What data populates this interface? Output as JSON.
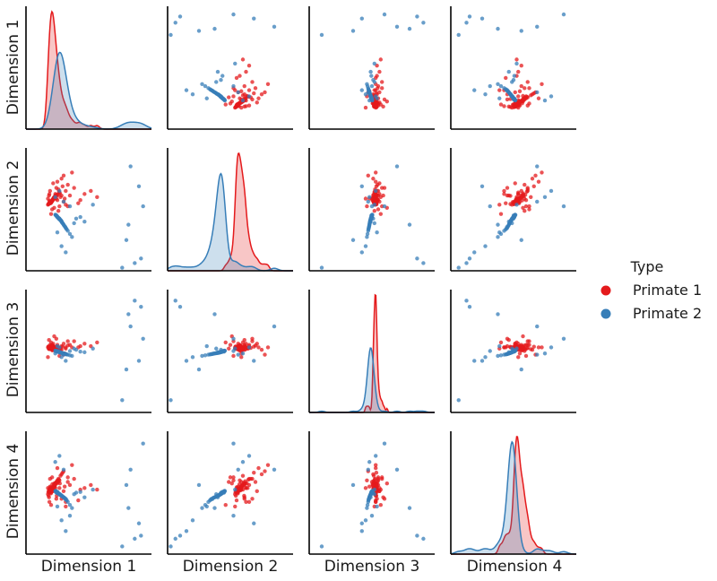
{
  "chart_data": {
    "type": "scatter",
    "subtype": "pairplot",
    "variables": [
      "Dimension 1",
      "Dimension 2",
      "Dimension 3",
      "Dimension 4"
    ],
    "diagonal": "kde",
    "tick_labels_shown": false,
    "legend": {
      "title": "Type",
      "placement": "right",
      "entries": [
        "Primate 1",
        "Primate 2"
      ]
    },
    "colors": {
      "Primate 1": "#e41a1c",
      "Primate 2": "#377eb8"
    },
    "ranges": {
      "Dimension 1": [
        -1.0,
        5.0
      ],
      "Dimension 2": [
        -4.0,
        4.0
      ],
      "Dimension 3": [
        -5.0,
        5.0
      ],
      "Dimension 4": [
        -4.0,
        4.0
      ]
    },
    "series": [
      {
        "name": "Primate 1",
        "points": [
          [
            0.1,
            0.4,
            0.2,
            0.1
          ],
          [
            0.25,
            0.6,
            0.1,
            0.3
          ],
          [
            0.05,
            0.3,
            0.3,
            -0.1
          ],
          [
            0.3,
            0.7,
            0.2,
            0.2
          ],
          [
            0.15,
            0.5,
            0.4,
            0.4
          ],
          [
            0.4,
            0.9,
            0.1,
            0.6
          ],
          [
            0.2,
            0.45,
            0.25,
            0.0
          ],
          [
            0.35,
            0.8,
            0.3,
            0.5
          ],
          [
            0.12,
            0.55,
            0.15,
            0.25
          ],
          [
            0.5,
            0.6,
            0.5,
            0.8
          ],
          [
            0.6,
            1.1,
            0.2,
            0.3
          ],
          [
            0.08,
            0.35,
            0.35,
            -0.2
          ],
          [
            0.45,
            0.7,
            0.0,
            0.7
          ],
          [
            0.28,
            0.65,
            0.45,
            0.15
          ],
          [
            0.18,
            0.4,
            0.2,
            0.35
          ],
          [
            0.7,
            0.9,
            0.4,
            -0.4
          ],
          [
            0.33,
            0.75,
            0.1,
            0.45
          ],
          [
            0.22,
            0.5,
            0.3,
            0.05
          ],
          [
            0.55,
            1.3,
            0.25,
            0.9
          ],
          [
            0.14,
            0.42,
            0.35,
            0.2
          ],
          [
            0.8,
            0.5,
            0.6,
            0.1
          ],
          [
            0.26,
            0.58,
            0.05,
            0.55
          ],
          [
            0.4,
            1.0,
            0.3,
            0.3
          ],
          [
            0.19,
            0.48,
            0.22,
            -0.05
          ],
          [
            0.65,
            0.8,
            0.15,
            1.1
          ],
          [
            0.31,
            0.68,
            0.4,
            0.28
          ],
          [
            0.09,
            0.36,
            0.18,
            0.12
          ],
          [
            0.9,
            1.2,
            0.3,
            -0.6
          ],
          [
            0.38,
            0.72,
            0.28,
            0.38
          ],
          [
            0.24,
            0.52,
            0.12,
            0.18
          ],
          [
            0.16,
            0.46,
            0.32,
            0.08
          ],
          [
            1.1,
            0.9,
            0.5,
            0.5
          ],
          [
            0.42,
            0.85,
            0.2,
            0.65
          ],
          [
            0.29,
            0.62,
            0.38,
            0.22
          ],
          [
            0.21,
            0.44,
            0.16,
            0.32
          ],
          [
            0.75,
            1.5,
            0.35,
            1.3
          ],
          [
            0.36,
            0.78,
            0.24,
            0.42
          ],
          [
            0.13,
            0.39,
            0.28,
            0.02
          ],
          [
            0.52,
            0.95,
            0.12,
            0.75
          ],
          [
            0.27,
            0.57,
            0.42,
            0.14
          ],
          [
            1.3,
            1.4,
            0.8,
            0.9
          ],
          [
            0.47,
            0.88,
            0.3,
            -0.2
          ],
          [
            0.23,
            0.51,
            0.19,
            0.27
          ],
          [
            0.62,
            1.05,
            0.26,
            0.6
          ],
          [
            0.17,
            0.43,
            0.33,
            0.11
          ],
          [
            0.34,
            0.74,
            0.08,
            0.48
          ],
          [
            1.6,
            0.6,
            0.4,
            0.2
          ],
          [
            0.44,
            0.92,
            0.36,
            0.58
          ],
          [
            0.11,
            0.37,
            0.23,
            0.06
          ],
          [
            0.58,
            1.15,
            0.21,
            0.85
          ],
          [
            0.32,
            0.66,
            0.31,
            0.34
          ],
          [
            0.2,
            0.47,
            0.14,
            0.16
          ],
          [
            0.85,
            0.7,
            -0.2,
            0.4
          ],
          [
            0.39,
            0.83,
            0.29,
            0.52
          ],
          [
            0.07,
            0.33,
            0.37,
            0.03
          ],
          [
            1.0,
            1.6,
            0.45,
            0.7
          ],
          [
            0.3,
            0.64,
            0.17,
            0.26
          ],
          [
            0.48,
            0.97,
            0.34,
            0.62
          ],
          [
            0.25,
            0.54,
            0.27,
            0.19
          ],
          [
            1.8,
            1.0,
            0.6,
            0.3
          ],
          [
            0.15,
            1.2,
            0.5,
            0.9
          ],
          [
            0.5,
            1.8,
            0.3,
            1.6
          ],
          [
            0.2,
            -0.3,
            0.7,
            -0.8
          ],
          [
            0.6,
            0.2,
            -0.4,
            0.8
          ],
          [
            0.1,
            0.9,
            0.9,
            -0.3
          ],
          [
            0.7,
            2.0,
            0.1,
            1.2
          ],
          [
            0.35,
            0.1,
            1.2,
            0.6
          ],
          [
            0.9,
            0.3,
            0.2,
            -0.9
          ],
          [
            0.05,
            0.7,
            -0.5,
            0.3
          ],
          [
            1.2,
            2.4,
            0.3,
            1.8
          ],
          [
            0.45,
            1.4,
            1.0,
            -0.4
          ],
          [
            0.25,
            0.0,
            0.5,
            1.0
          ],
          [
            2.1,
            1.2,
            0.4,
            0.5
          ],
          [
            2.4,
            0.8,
            0.7,
            0.2
          ],
          [
            0.8,
            2.2,
            -0.3,
            1.4
          ],
          [
            1.5,
            0.4,
            0.3,
            -0.5
          ],
          [
            0.3,
            1.7,
            0.6,
            0.1
          ],
          [
            0.55,
            -0.1,
            0.2,
            0.7
          ],
          [
            1.0,
            0.2,
            0.8,
            1.0
          ],
          [
            0.12,
            1.0,
            0.3,
            -0.6
          ]
        ]
      },
      {
        "name": "Primate 2",
        "points": [
          [
            0.6,
            -0.6,
            -0.1,
            -0.1
          ],
          [
            0.45,
            -0.4,
            -0.05,
            0.0
          ],
          [
            0.7,
            -0.8,
            -0.15,
            -0.2
          ],
          [
            0.5,
            -0.5,
            0.0,
            0.05
          ],
          [
            0.8,
            -1.0,
            -0.2,
            -0.3
          ],
          [
            0.55,
            -0.55,
            -0.08,
            -0.05
          ],
          [
            0.65,
            -0.7,
            -0.12,
            -0.15
          ],
          [
            0.4,
            -0.35,
            0.02,
            0.1
          ],
          [
            0.9,
            -1.2,
            -0.25,
            -0.4
          ],
          [
            0.58,
            -0.62,
            -0.06,
            -0.08
          ],
          [
            0.48,
            -0.45,
            -0.03,
            0.02
          ],
          [
            0.75,
            -0.9,
            -0.18,
            -0.25
          ],
          [
            0.62,
            -0.66,
            -0.1,
            -0.12
          ],
          [
            0.52,
            -0.52,
            -0.04,
            -0.02
          ],
          [
            1.0,
            -1.4,
            -0.3,
            -0.6
          ],
          [
            0.68,
            -0.75,
            -0.14,
            -0.18
          ],
          [
            0.43,
            -0.38,
            0.01,
            0.08
          ],
          [
            0.57,
            -0.58,
            -0.07,
            -0.06
          ],
          [
            0.85,
            -1.1,
            -0.22,
            -0.35
          ],
          [
            0.64,
            -0.68,
            -0.11,
            -0.13
          ],
          [
            0.5,
            -0.48,
            -0.02,
            0.03
          ],
          [
            0.72,
            -0.85,
            -0.16,
            -0.22
          ],
          [
            0.46,
            -0.42,
            -0.01,
            0.06
          ],
          [
            0.6,
            -0.64,
            -0.09,
            -0.1
          ],
          [
            0.95,
            -1.3,
            -0.28,
            -0.5
          ],
          [
            0.55,
            -0.56,
            -0.05,
            -0.04
          ],
          [
            0.66,
            -0.72,
            -0.13,
            -0.16
          ],
          [
            0.42,
            -0.36,
            0.03,
            0.12
          ],
          [
            0.78,
            -0.95,
            -0.19,
            -0.28
          ],
          [
            0.59,
            -0.6,
            -0.08,
            -0.07
          ],
          [
            0.49,
            -0.47,
            -0.02,
            0.01
          ],
          [
            0.7,
            -0.78,
            -0.15,
            -0.19
          ],
          [
            0.53,
            -0.53,
            -0.06,
            -0.03
          ],
          [
            0.88,
            -1.15,
            -0.24,
            -0.42
          ],
          [
            0.61,
            -0.65,
            -0.1,
            -0.11
          ],
          [
            0.44,
            -0.4,
            0.0,
            0.07
          ],
          [
            1.1,
            -1.6,
            -0.35,
            -0.8
          ],
          [
            0.57,
            -0.59,
            -0.07,
            -0.06
          ],
          [
            0.67,
            -0.74,
            -0.13,
            -0.17
          ],
          [
            0.47,
            -0.44,
            -0.02,
            0.04
          ],
          [
            0.82,
            -1.05,
            -0.21,
            -0.32
          ],
          [
            0.56,
            -0.57,
            -0.06,
            -0.05
          ],
          [
            0.63,
            -0.67,
            -0.11,
            -0.12
          ],
          [
            0.51,
            -0.5,
            -0.03,
            0.0
          ],
          [
            1.2,
            -1.8,
            -0.4,
            -1.0
          ],
          [
            0.74,
            -0.88,
            -0.17,
            -0.24
          ],
          [
            0.45,
            -0.41,
            0.01,
            0.09
          ],
          [
            0.69,
            -0.76,
            -0.14,
            -0.18
          ],
          [
            0.54,
            -0.54,
            -0.05,
            -0.04
          ],
          [
            0.92,
            -1.25,
            -0.26,
            -0.45
          ],
          [
            0.58,
            -0.61,
            -0.08,
            -0.08
          ],
          [
            0.48,
            -0.46,
            -0.02,
            0.02
          ],
          [
            1.4,
            -0.6,
            0.1,
            0.0
          ],
          [
            1.6,
            -0.5,
            -0.05,
            0.05
          ],
          [
            1.3,
            -0.9,
            0.2,
            -0.1
          ],
          [
            0.7,
            -2.4,
            -0.5,
            -1.8
          ],
          [
            0.9,
            -2.8,
            -0.8,
            -2.5
          ],
          [
            0.4,
            0.8,
            -0.2,
            2.0
          ],
          [
            0.6,
            1.2,
            0.3,
            2.4
          ],
          [
            1.1,
            0.2,
            0.0,
            -1.5
          ],
          [
            0.5,
            -1.5,
            0.4,
            -0.9
          ],
          [
            0.8,
            0.5,
            -0.3,
            1.5
          ],
          [
            2.2,
            0.3,
            0.2,
            0.2
          ],
          [
            1.8,
            -0.8,
            -0.1,
            -0.3
          ],
          [
            4.2,
            -3.5,
            4.1,
            -3.0
          ],
          [
            4.5,
            -3.2,
            3.6,
            -2.8
          ],
          [
            4.0,
            2.8,
            2.0,
            1.5
          ],
          [
            3.8,
            -2.0,
            -1.5,
            0.5
          ],
          [
            4.4,
            1.5,
            -0.8,
            -2.0
          ],
          [
            3.6,
            -3.8,
            -4.0,
            -3.5
          ],
          [
            4.6,
            0.2,
            1.0,
            3.2
          ],
          [
            3.9,
            -1.0,
            3.0,
            -1.0
          ]
        ]
      }
    ]
  }
}
